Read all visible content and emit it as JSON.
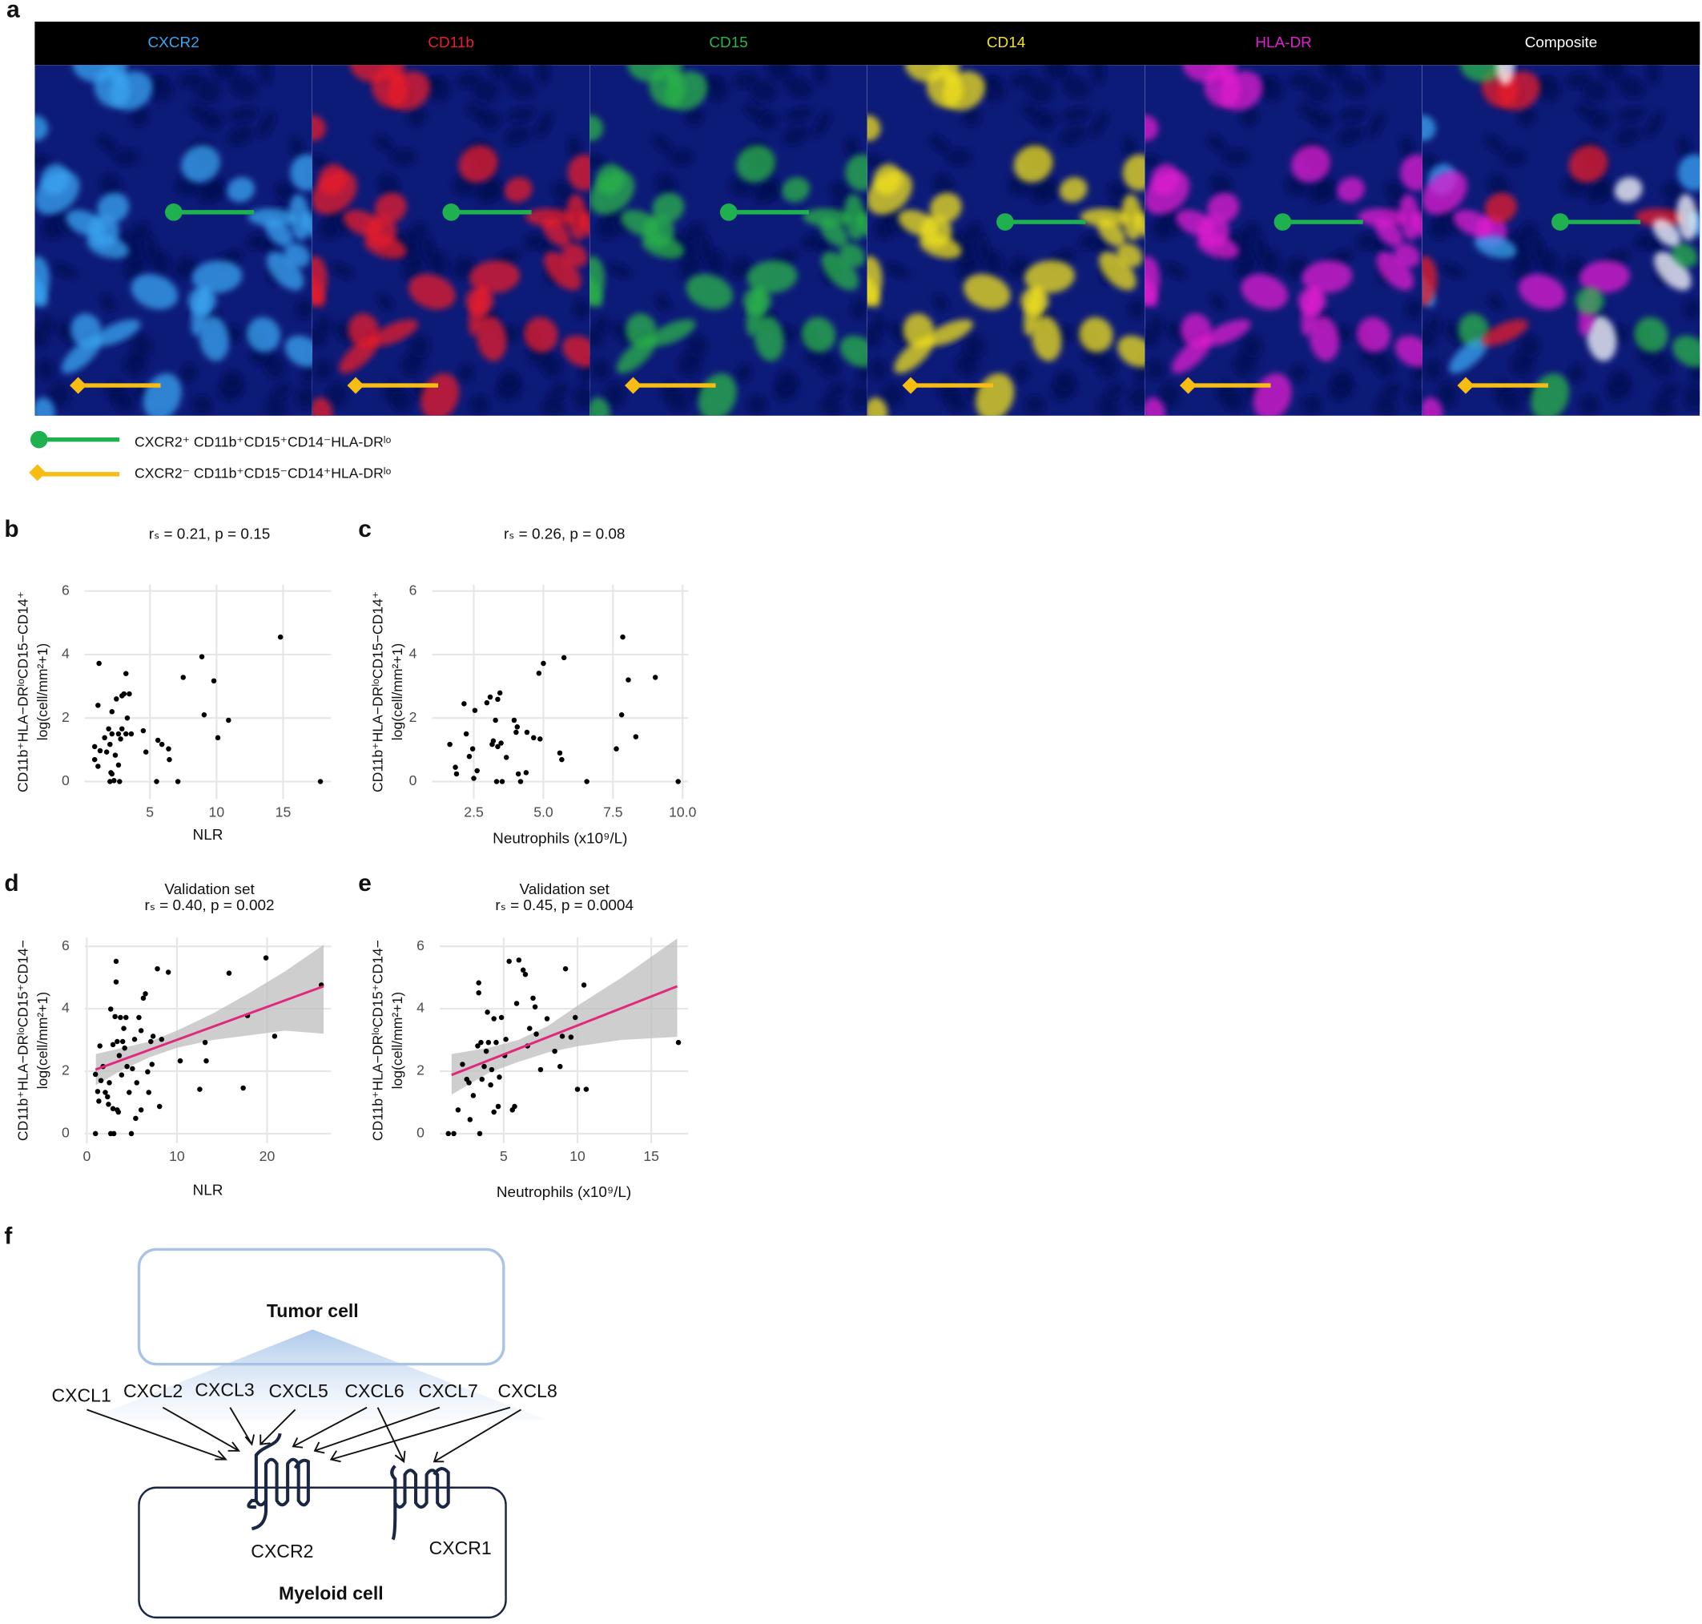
{
  "panel_a": {
    "label": "a",
    "channels": [
      {
        "name": "CXCR2",
        "color": "#3aa6f2"
      },
      {
        "name": "CD11b",
        "color": "#ea1f2c"
      },
      {
        "name": "CD15",
        "color": "#2bb44a"
      },
      {
        "name": "CD14",
        "color": "#f2e21e"
      },
      {
        "name": "HLA-DR",
        "color": "#e21fd0"
      },
      {
        "name": "Composite",
        "color": "#ffffff"
      }
    ],
    "legend": [
      {
        "text": "CXCR2⁺ CD11b⁺CD15⁺CD14⁻HLA-DRˡᵒ",
        "color": "#1fb050",
        "marker": "circle"
      },
      {
        "text": "CXCR2⁻ CD11b⁺CD15⁻CD14⁺HLA-DRˡᵒ",
        "color": "#f7bd12",
        "marker": "diamond"
      }
    ]
  },
  "chart_data": [
    {
      "type": "scatter",
      "panel": "b",
      "title": "rₛ = 0.21, p = 0.15",
      "xlabel": "NLR",
      "ylabel": [
        "CD11b⁺HLA−DRˡᵒCD15−CD14⁺",
        "log(cell/mm²+1)"
      ],
      "color": "#000000",
      "grid": true,
      "xlim": [
        0.1,
        18.6
      ],
      "ylim": [
        -0.55,
        6.2
      ],
      "xticks": [
        5,
        10,
        15
      ],
      "yticks": [
        0,
        2,
        4,
        6
      ],
      "x": [
        1.18,
        1.1,
        0.85,
        1.26,
        0.85,
        1.1,
        1.6,
        1.9,
        2.15,
        2,
        1.75,
        2.07,
        2,
        2.3,
        2.15,
        2.15,
        2.48,
        2.72,
        2.64,
        2.4,
        2.9,
        3.2,
        3.05,
        3.45,
        3.3,
        2.9,
        3.2,
        3.6,
        2.8,
        2.64,
        4.5,
        4.7,
        5.6,
        5.5,
        5.9,
        6.4,
        6.46,
        7.1,
        7.5,
        8.9,
        9.07,
        9.8,
        10.1,
        10.9,
        14.8,
        17.8
      ],
      "values": [
        3.72,
        2.4,
        1.1,
        0.97,
        0.69,
        0.48,
        1.38,
        1.66,
        1.5,
        1.17,
        0.93,
        0.28,
        0,
        0.03,
        0.24,
        2.2,
        2.6,
        0,
        0.52,
        0.83,
        2.7,
        3.4,
        2.76,
        2.76,
        2,
        1.66,
        1.5,
        1.5,
        1.34,
        1.5,
        1.6,
        0.93,
        1.3,
        0,
        1.17,
        1.03,
        0.69,
        0,
        3.28,
        3.93,
        2.1,
        3.17,
        1.38,
        1.93,
        4.55,
        0
      ]
    },
    {
      "type": "scatter",
      "panel": "c",
      "title": "rₛ = 0.26, p = 0.08",
      "xlabel": "Neutrophils (x10⁹/L)",
      "ylabel": [
        "CD11b⁺HLA−DRˡᵒCD15−CD14⁺",
        "log(cell/mm²+1)"
      ],
      "color": "#000000",
      "grid": true,
      "xlim": [
        1.0,
        10.2
      ],
      "ylim": [
        -0.55,
        6.2
      ],
      "xticks": [
        2.5,
        {
          "value": 5,
          "label": "5.0"
        },
        7.5,
        {
          "value": 10,
          "label": "10.0"
        }
      ],
      "yticks": [
        0,
        2,
        4,
        6
      ],
      "x": [
        2.15,
        1.64,
        1.84,
        1.88,
        2.23,
        2.34,
        2.46,
        2.62,
        2.54,
        2.5,
        2.97,
        3.16,
        3.28,
        3.2,
        3.44,
        3.36,
        3.09,
        3.36,
        3.48,
        3.32,
        3.52,
        3.67,
        3.95,
        4.02,
        4.06,
        4.1,
        4.18,
        4.38,
        4.41,
        4.65,
        4.88,
        4.84,
        5,
        5.59,
        5.66,
        5.74,
        6.56,
        7.62,
        7.81,
        7.85,
        8.05,
        8.32,
        9.02,
        9.84
      ],
      "values": [
        2.45,
        1.17,
        0.45,
        0.24,
        1.5,
        0.79,
        1.03,
        0.34,
        2.24,
        0.1,
        2.48,
        1.17,
        1.93,
        1.28,
        2.79,
        2.59,
        2.66,
        1.1,
        1.21,
        0,
        0,
        0.76,
        1.93,
        1.55,
        1.72,
        0.24,
        0,
        0.28,
        1.55,
        1.38,
        1.34,
        3.41,
        3.72,
        0.9,
        0.69,
        3.9,
        0,
        1.03,
        2.1,
        4.55,
        3.2,
        1.41,
        3.28,
        0
      ]
    },
    {
      "type": "scatter",
      "panel": "d",
      "title": "Validation set",
      "subtitle": "rₛ = 0.40, p = 0.002",
      "xlabel": "NLR",
      "ylabel": [
        "CD11b⁺HLA−DRˡᵒCD15⁺CD14−",
        "log(cell/mm²+1)"
      ],
      "color": "#000000",
      "grid": true,
      "xlim": [
        -0.24,
        27.1
      ],
      "ylim": [
        -0.31,
        6.28
      ],
      "xticks": [
        0,
        10,
        20
      ],
      "yticks": [
        0,
        2,
        4,
        6
      ],
      "x": [
        0.96,
        0.96,
        1.2,
        1.33,
        1.45,
        1.57,
        1.8,
        2.05,
        2.3,
        2.4,
        2.5,
        2.65,
        2.65,
        2.9,
        2.9,
        3,
        3.13,
        3.25,
        3.25,
        3.37,
        3.37,
        3.5,
        3.6,
        3.73,
        3.86,
        3.98,
        4.1,
        4.2,
        4.34,
        4.46,
        4.7,
        4.94,
        5.06,
        5.3,
        5.42,
        5.54,
        5.78,
        6.02,
        6.02,
        6.27,
        6.5,
        6.75,
        6.87,
        7.1,
        7.23,
        7.35,
        7.83,
        8.07,
        8.3,
        9.04,
        10.36,
        12.53,
        13.13,
        13.25,
        15.78,
        17.35,
        17.83,
        19.88,
        20.84,
        26.02
      ],
      "values": [
        0,
        1.9,
        1.35,
        1.04,
        2.81,
        1.7,
        2.15,
        1.32,
        1.18,
        0.94,
        1.63,
        3.99,
        0,
        2.85,
        0.8,
        0,
        3.75,
        5.52,
        4.86,
        2.95,
        0.76,
        0.69,
        2.5,
        3.72,
        1.88,
        2.95,
        3.37,
        2.74,
        3.72,
        2.15,
        1.32,
        0,
        2.08,
        3.02,
        0.49,
        1.63,
        3.72,
        3.3,
        0.76,
        4.34,
        4.48,
        1.98,
        1.32,
        2.95,
        2.22,
        3.12,
        5.28,
        0.87,
        3.02,
        5.17,
        2.33,
        1.42,
        2.92,
        2.33,
        5.14,
        1.46,
        3.78,
        5.63,
        3.12,
        4.76
      ],
      "fit": {
        "color": "#e0287d",
        "x": [
          0.96,
          26.27
        ],
        "values": [
          2.05,
          4.72
        ]
      },
      "band": {
        "color": "#bdbdbd",
        "x": [
          1,
          4,
          7,
          10,
          14,
          18,
          22,
          26.27
        ],
        "lower": [
          1.55,
          2.05,
          2.45,
          2.75,
          3.0,
          3.15,
          3.3,
          3.2
        ],
        "upper": [
          2.55,
          2.75,
          2.95,
          3.3,
          3.85,
          4.5,
          5.2,
          6.05
        ]
      }
    },
    {
      "type": "scatter",
      "panel": "e",
      "title": "Validation set",
      "subtitle": "rₛ = 0.45, p = 0.0004",
      "xlabel": "Neutrophils (x10⁹/L)",
      "ylabel": [
        "CD11b⁺HLA−DRˡᵒCD15⁺CD14−",
        "log(cell/mm²+1)"
      ],
      "color": "#000000",
      "grid": true,
      "xlim": [
        0.66,
        17.5
      ],
      "ylim": [
        -0.31,
        6.28
      ],
      "xticks": [
        5,
        10,
        15
      ],
      "yticks": [
        0,
        2,
        4,
        6
      ],
      "x": [
        1.25,
        1.62,
        1.91,
        2.21,
        2.5,
        2.65,
        2.72,
        2.94,
        3.24,
        3.31,
        3.31,
        3.38,
        3.46,
        3.53,
        3.68,
        3.82,
        3.9,
        3.97,
        4.12,
        4.19,
        4.34,
        4.34,
        4.49,
        4.63,
        4.71,
        4.85,
        5.07,
        5.15,
        5.37,
        5.59,
        5.74,
        5.88,
        6.03,
        6.32,
        6.47,
        6.62,
        6.76,
        6.99,
        7.13,
        7.21,
        7.5,
        7.94,
        8.46,
        8.82,
        8.97,
        9.19,
        9.56,
        9.85,
        10,
        10.44,
        10.59,
        16.84
      ],
      "values": [
        0,
        0,
        0.76,
        2.22,
        1.74,
        1.63,
        0.45,
        1.22,
        2.81,
        4.83,
        4.51,
        0,
        2.92,
        1.74,
        2.15,
        2.64,
        3.89,
        2.92,
        1.56,
        2.05,
        3.68,
        0.69,
        2.92,
        0.87,
        1.81,
        3.72,
        2.5,
        3.02,
        5.52,
        0.76,
        0.87,
        4.17,
        5.56,
        5.24,
        5.1,
        2.81,
        3.37,
        4.34,
        4.06,
        3.19,
        2.05,
        3.68,
        2.64,
        2.15,
        3.12,
        5.28,
        3.09,
        3.72,
        1.42,
        4.76,
        1.42,
        2.92
      ],
      "fit": {
        "color": "#e0287d",
        "x": [
          1.47,
          16.76
        ],
        "values": [
          1.88,
          4.72
        ]
      },
      "band": {
        "color": "#bdbdbd",
        "x": [
          1.47,
          4,
          6,
          8,
          10,
          13,
          16.76
        ],
        "lower": [
          1.25,
          1.95,
          2.3,
          2.6,
          2.8,
          3.0,
          3.1
        ],
        "upper": [
          2.55,
          2.75,
          3.0,
          3.45,
          4.1,
          5.0,
          6.25
        ]
      }
    }
  ],
  "panel_f": {
    "label": "f",
    "tumor": "Tumor cell",
    "myeloid": "Myeloid cell",
    "ligands": [
      "CXCL1",
      "CXCL2",
      "CXCL3",
      "CXCL5",
      "CXCL6",
      "CXCL7",
      "CXCL8"
    ],
    "receptors": [
      "CXCR2",
      "CXCR1"
    ]
  }
}
